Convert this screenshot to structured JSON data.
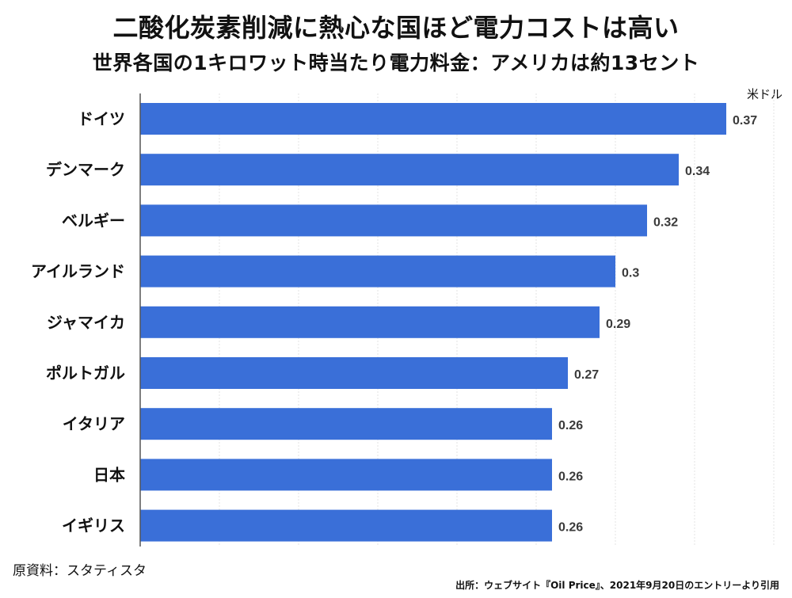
{
  "chart_data": {
    "type": "bar",
    "orientation": "horizontal",
    "title": "二酸化炭素削減に熱心な国ほど電力コストは高い",
    "subtitle": "世界各国の1キロワット時当たり電力料金：アメリカは約13セント",
    "unit_label": "米ドル",
    "categories": [
      "ドイツ",
      "デンマーク",
      "ベルギー",
      "アイルランド",
      "ジャマイカ",
      "ポルトガル",
      "イタリア",
      "日本",
      "イギリス"
    ],
    "values": [
      0.37,
      0.34,
      0.32,
      0.3,
      0.29,
      0.27,
      0.26,
      0.26,
      0.26
    ],
    "value_labels": [
      "0.37",
      "0.34",
      "0.32",
      "0.3",
      "0.29",
      "0.27",
      "0.26",
      "0.26",
      "0.26"
    ],
    "xlim": [
      0,
      0.4
    ],
    "grid": true,
    "bar_color": "#3a6fd8",
    "source_left": "原資料：スタティスタ",
    "source_right": "出所：ウェブサイト『Oil Price』、2021年9月20日のエントリーより引用"
  }
}
